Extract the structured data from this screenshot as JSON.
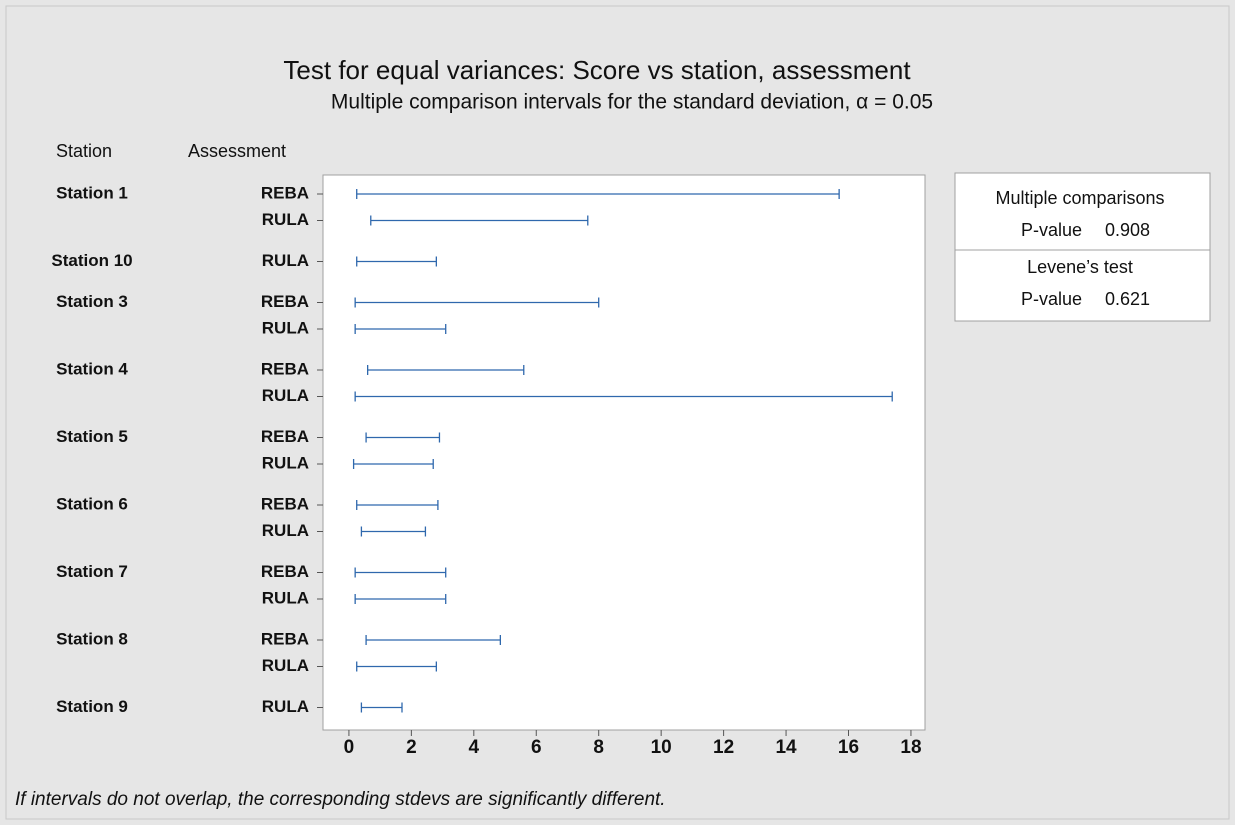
{
  "chart_data": {
    "type": "interval",
    "title": "Test for equal variances: Score vs station, assessment",
    "subtitle": "Multiple comparison intervals for the standard deviation, α = 0.05",
    "row_headers": [
      "Station",
      "Assessment"
    ],
    "categories": [
      "Station 1",
      null,
      "Station 10",
      "Station 3",
      null,
      "Station 4",
      null,
      "Station 5",
      null,
      "Station 6",
      null,
      "Station 7",
      null,
      "Station 8",
      null,
      "Station 9"
    ],
    "assessments": [
      "REBA",
      "RULA",
      "RULA",
      "REBA",
      "RULA",
      "REBA",
      "RULA",
      "REBA",
      "RULA",
      "REBA",
      "RULA",
      "REBA",
      "RULA",
      "REBA",
      "RULA",
      "RULA"
    ],
    "lower": [
      0.25,
      0.7,
      0.25,
      0.2,
      0.2,
      0.6,
      0.2,
      0.55,
      0.15,
      0.25,
      0.4,
      0.2,
      0.2,
      0.55,
      0.25,
      0.4
    ],
    "upper": [
      15.7,
      7.65,
      2.8,
      8.0,
      3.1,
      5.6,
      17.4,
      2.9,
      2.7,
      2.85,
      2.45,
      3.1,
      3.1,
      4.85,
      2.8,
      1.7
    ],
    "color": "#2f68ad",
    "xlim": [
      -0.83,
      18.45
    ],
    "xticks": [
      0,
      2,
      4,
      6,
      8,
      10,
      12,
      14,
      16,
      18
    ],
    "tests": [
      {
        "name": "Multiple comparisons",
        "label": "P-value",
        "value": 0.908
      },
      {
        "name": "Levene’s test",
        "label": "P-value",
        "value": 0.621
      }
    ],
    "footnote": "If intervals do not overlap, the corresponding stdevs are significantly different."
  }
}
